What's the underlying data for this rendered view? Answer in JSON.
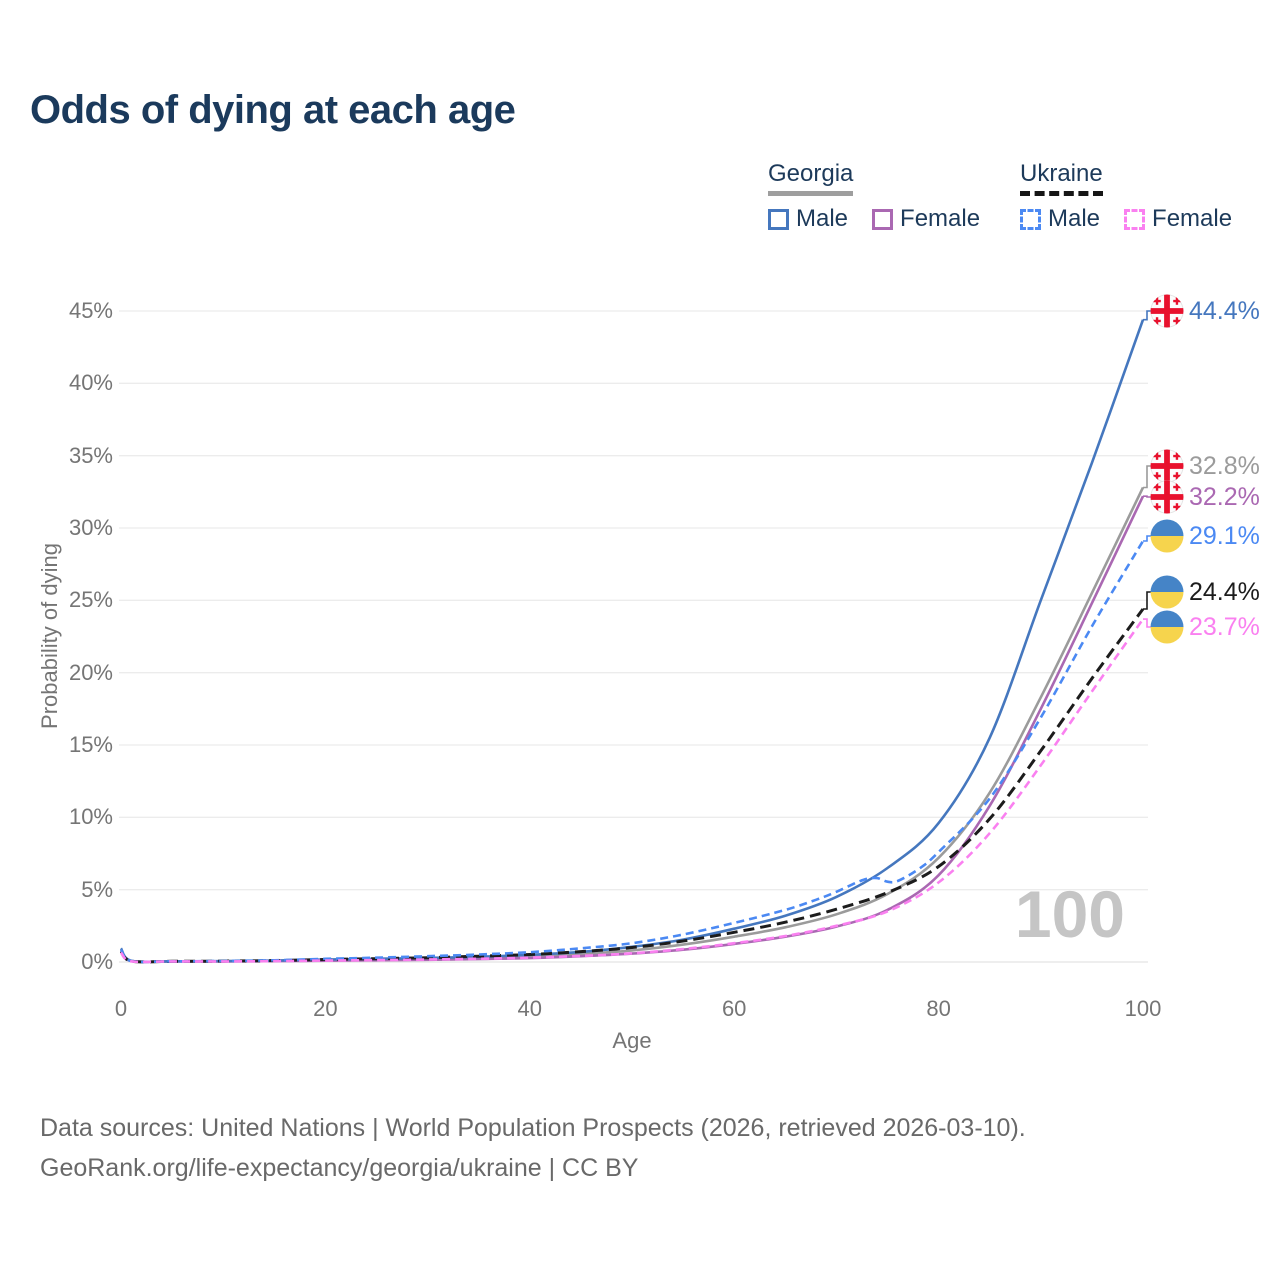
{
  "title": "Odds of dying at each age",
  "legend": {
    "groups": [
      {
        "id": "georgia",
        "label": "Georgia",
        "line_style": "solid",
        "line_color": "#9e9e9e",
        "items": [
          {
            "id": "ge_m",
            "label": "Male",
            "color": "#4577be",
            "style": "solid"
          },
          {
            "id": "ge_f",
            "label": "Female",
            "color": "#aa68b2",
            "style": "solid"
          }
        ]
      },
      {
        "id": "ukraine",
        "label": "Ukraine",
        "line_style": "dashed",
        "line_color": "#161616",
        "items": [
          {
            "id": "ua_m",
            "label": "Male",
            "color": "#4b89f3",
            "style": "dashed"
          },
          {
            "id": "ua_f",
            "label": "Female",
            "color": "#fa80f0",
            "style": "dashed"
          }
        ]
      }
    ]
  },
  "chart_data": {
    "type": "line",
    "title": "Odds of dying at each age",
    "xlabel": "Age",
    "ylabel": "Probability of dying",
    "xlim": [
      0,
      100
    ],
    "ylim": [
      0,
      45
    ],
    "x_ticks": [
      0,
      20,
      40,
      60,
      80,
      100
    ],
    "y_ticks": [
      0,
      5,
      10,
      15,
      20,
      25,
      30,
      35,
      40,
      45
    ],
    "y_tick_suffix": "%",
    "grid": "horizontal-only",
    "legend_position": "top-right",
    "watermark": "100",
    "series": [
      {
        "id": "ge_m",
        "name": "Georgia Male",
        "country": "Georgia",
        "sex": "Male",
        "color": "#4577be",
        "dash": "solid",
        "flag": "georgia",
        "end_label": "44.4%",
        "end_value": 44.4,
        "points": [
          [
            0,
            0.95
          ],
          [
            1,
            0.08
          ],
          [
            5,
            0.05
          ],
          [
            10,
            0.06
          ],
          [
            15,
            0.1
          ],
          [
            20,
            0.17
          ],
          [
            25,
            0.22
          ],
          [
            30,
            0.28
          ],
          [
            35,
            0.36
          ],
          [
            40,
            0.5
          ],
          [
            45,
            0.7
          ],
          [
            50,
            1.05
          ],
          [
            55,
            1.55
          ],
          [
            60,
            2.3
          ],
          [
            65,
            3.2
          ],
          [
            70,
            4.5
          ],
          [
            75,
            6.5
          ],
          [
            80,
            9.6
          ],
          [
            85,
            15.5
          ],
          [
            90,
            25.0
          ],
          [
            95,
            34.5
          ],
          [
            100,
            44.4
          ]
        ]
      },
      {
        "id": "ge_t",
        "name": "Georgia",
        "country": "Georgia",
        "sex": "Both",
        "color": "#9b9b9b",
        "dash": "solid",
        "flag": "georgia",
        "end_label": "32.8%",
        "end_value": 32.8,
        "points": [
          [
            0,
            0.85
          ],
          [
            1,
            0.07
          ],
          [
            5,
            0.05
          ],
          [
            10,
            0.05
          ],
          [
            15,
            0.08
          ],
          [
            20,
            0.13
          ],
          [
            25,
            0.17
          ],
          [
            30,
            0.22
          ],
          [
            35,
            0.28
          ],
          [
            40,
            0.38
          ],
          [
            45,
            0.55
          ],
          [
            50,
            0.8
          ],
          [
            55,
            1.2
          ],
          [
            60,
            1.75
          ],
          [
            65,
            2.4
          ],
          [
            70,
            3.3
          ],
          [
            75,
            4.7
          ],
          [
            80,
            7.2
          ],
          [
            85,
            11.7
          ],
          [
            90,
            18.3
          ],
          [
            95,
            25.5
          ],
          [
            100,
            32.8
          ]
        ]
      },
      {
        "id": "ge_f",
        "name": "Georgia Female",
        "country": "Georgia",
        "sex": "Female",
        "color": "#aa68b2",
        "dash": "solid",
        "flag": "georgia",
        "end_label": "32.2%",
        "end_value": 32.2,
        "points": [
          [
            0,
            0.75
          ],
          [
            1,
            0.06
          ],
          [
            5,
            0.04
          ],
          [
            10,
            0.04
          ],
          [
            15,
            0.06
          ],
          [
            20,
            0.09
          ],
          [
            25,
            0.12
          ],
          [
            30,
            0.15
          ],
          [
            35,
            0.2
          ],
          [
            40,
            0.27
          ],
          [
            45,
            0.4
          ],
          [
            50,
            0.58
          ],
          [
            55,
            0.85
          ],
          [
            60,
            1.25
          ],
          [
            65,
            1.75
          ],
          [
            70,
            2.45
          ],
          [
            75,
            3.6
          ],
          [
            80,
            6.0
          ],
          [
            85,
            10.8
          ],
          [
            90,
            17.5
          ],
          [
            95,
            24.8
          ],
          [
            100,
            32.2
          ]
        ]
      },
      {
        "id": "ua_m",
        "name": "Ukraine Male",
        "country": "Ukraine",
        "sex": "Male",
        "color": "#4b89f3",
        "dash": "dashed",
        "flag": "ukraine",
        "end_label": "29.1%",
        "end_value": 29.1,
        "points": [
          [
            0,
            0.85
          ],
          [
            1,
            0.07
          ],
          [
            5,
            0.05
          ],
          [
            10,
            0.07
          ],
          [
            15,
            0.12
          ],
          [
            20,
            0.22
          ],
          [
            25,
            0.3
          ],
          [
            30,
            0.4
          ],
          [
            35,
            0.52
          ],
          [
            40,
            0.68
          ],
          [
            45,
            0.95
          ],
          [
            50,
            1.3
          ],
          [
            55,
            1.9
          ],
          [
            60,
            2.7
          ],
          [
            65,
            3.6
          ],
          [
            68,
            4.3
          ],
          [
            70,
            4.85
          ],
          [
            72,
            5.5
          ],
          [
            73,
            5.75
          ],
          [
            74,
            5.8
          ],
          [
            75,
            5.55
          ],
          [
            76,
            5.6
          ],
          [
            78,
            6.4
          ],
          [
            80,
            7.6
          ],
          [
            85,
            11.3
          ],
          [
            90,
            16.9
          ],
          [
            95,
            23.2
          ],
          [
            100,
            29.1
          ]
        ]
      },
      {
        "id": "ua_t",
        "name": "Ukraine",
        "country": "Ukraine",
        "sex": "Both",
        "color": "#1c1c1c",
        "dash": "dashed",
        "flag": "ukraine",
        "end_label": "24.4%",
        "end_value": 24.4,
        "points": [
          [
            0,
            0.75
          ],
          [
            1,
            0.06
          ],
          [
            5,
            0.05
          ],
          [
            10,
            0.06
          ],
          [
            15,
            0.1
          ],
          [
            20,
            0.17
          ],
          [
            25,
            0.23
          ],
          [
            30,
            0.3
          ],
          [
            35,
            0.4
          ],
          [
            40,
            0.52
          ],
          [
            45,
            0.72
          ],
          [
            50,
            1.0
          ],
          [
            55,
            1.45
          ],
          [
            60,
            2.05
          ],
          [
            65,
            2.75
          ],
          [
            70,
            3.65
          ],
          [
            75,
            4.8
          ],
          [
            80,
            6.6
          ],
          [
            85,
            9.9
          ],
          [
            90,
            14.6
          ],
          [
            95,
            19.6
          ],
          [
            100,
            24.4
          ]
        ]
      },
      {
        "id": "ua_f",
        "name": "Ukraine Female",
        "country": "Ukraine",
        "sex": "Female",
        "color": "#fa80f0",
        "dash": "dashed",
        "flag": "ukraine",
        "end_label": "23.7%",
        "end_value": 23.7,
        "points": [
          [
            0,
            0.65
          ],
          [
            1,
            0.05
          ],
          [
            5,
            0.04
          ],
          [
            10,
            0.04
          ],
          [
            15,
            0.06
          ],
          [
            20,
            0.1
          ],
          [
            25,
            0.13
          ],
          [
            30,
            0.17
          ],
          [
            35,
            0.22
          ],
          [
            40,
            0.3
          ],
          [
            45,
            0.42
          ],
          [
            50,
            0.6
          ],
          [
            55,
            0.9
          ],
          [
            60,
            1.3
          ],
          [
            65,
            1.8
          ],
          [
            70,
            2.5
          ],
          [
            75,
            3.5
          ],
          [
            80,
            5.5
          ],
          [
            85,
            8.9
          ],
          [
            90,
            13.6
          ],
          [
            95,
            18.7
          ],
          [
            100,
            23.7
          ]
        ]
      }
    ],
    "flag_colors": {
      "georgia_red": "#e8112d",
      "ukraine_blue": "#4584c7",
      "ukraine_yellow": "#f6d44d"
    }
  },
  "footer": {
    "line1": "Data sources: United Nations | World Population Prospects (2026, retrieved 2026-03-10).",
    "line2": "GeoRank.org/life-expectancy/georgia/ukraine | CC BY"
  }
}
